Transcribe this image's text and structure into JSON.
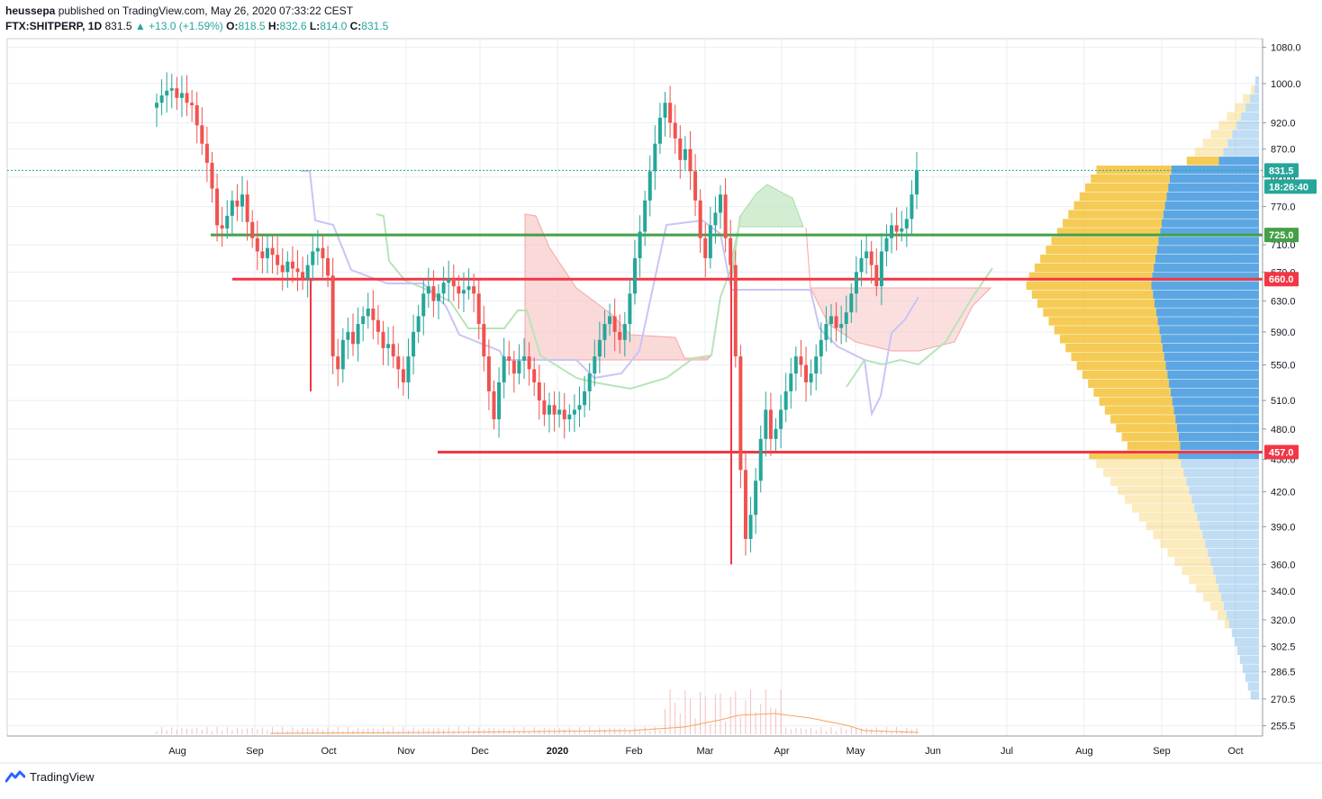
{
  "header": {
    "publisher_line": "published on TradingView.com, May 26, 2020 07:33:22 CEST",
    "author": "heussepa",
    "symbol": "FTX:SHITPERP, 1D",
    "last": "831.5",
    "change": "+13.0 (+1.59%)",
    "o_label": "O:",
    "o": "818.5",
    "h_label": "H:",
    "h": "832.6",
    "l_label": "L:",
    "l": "814.0",
    "c_label": "C:",
    "c": "831.5"
  },
  "footer": {
    "brand": "TradingView"
  },
  "colors": {
    "up": "#26a69a",
    "down": "#ef5350",
    "support_green": "#43a047",
    "level_red": "#f23645",
    "cloud_red": "#f8c9c9",
    "cloud_green": "#c8e8c8",
    "kijun": "#c9c4f5",
    "vp_yellow": "#f4c542",
    "vp_blue": "#4a9de0"
  },
  "chart_data": {
    "type": "candlestick",
    "y_scale": "log",
    "ylim": [
      250,
      1100
    ],
    "y_ticks": [
      1080.0,
      1000.0,
      920.0,
      870.0,
      820.0,
      770.0,
      710.0,
      670.0,
      630.0,
      590.0,
      550.0,
      510.0,
      480.0,
      450.0,
      420.0,
      390.0,
      360.0,
      340.0,
      320.0,
      302.5,
      286.5,
      270.5,
      255.5
    ],
    "x_ticks": [
      "Aug",
      "Sep",
      "Oct",
      "Nov",
      "Dec",
      "2020",
      "Feb",
      "Mar",
      "Apr",
      "May",
      "Jun",
      "Jul",
      "Aug",
      "Sep",
      "Oct"
    ],
    "price_labels": {
      "last": "831.5",
      "countdown": "18:26:40",
      "green_level": "725.0",
      "red_level_1": "660.0",
      "red_level_2": "457.0"
    },
    "horizontal_lines": [
      {
        "price": 725.0,
        "color": "green",
        "from": "Aug",
        "to": "right-edge"
      },
      {
        "price": 660.0,
        "color": "red",
        "from": "Aug",
        "to": "right-edge"
      },
      {
        "price": 457.0,
        "color": "red",
        "from": "Nov",
        "to": "right-edge"
      }
    ],
    "closes": [
      960,
      975,
      985,
      990,
      970,
      980,
      960,
      955,
      915,
      880,
      845,
      800,
      740,
      735,
      755,
      780,
      770,
      790,
      745,
      720,
      700,
      690,
      705,
      695,
      680,
      670,
      685,
      675,
      670,
      660,
      680,
      700,
      705,
      690,
      665,
      560,
      545,
      580,
      590,
      575,
      600,
      610,
      620,
      605,
      590,
      570,
      575,
      560,
      545,
      530,
      560,
      590,
      610,
      640,
      650,
      630,
      640,
      655,
      660,
      650,
      640,
      645,
      650,
      640,
      600,
      560,
      520,
      490,
      530,
      560,
      555,
      540,
      555,
      560,
      545,
      530,
      510,
      495,
      505,
      495,
      500,
      490,
      495,
      500,
      505,
      520,
      540,
      560,
      580,
      600,
      610,
      590,
      580,
      600,
      640,
      690,
      730,
      780,
      830,
      880,
      930,
      960,
      920,
      890,
      850,
      870,
      830,
      780,
      720,
      690,
      740,
      760,
      790,
      720,
      680,
      560,
      440,
      380,
      400,
      430,
      470,
      500,
      470,
      480,
      500,
      520,
      540,
      560,
      550,
      530,
      540,
      560,
      580,
      600,
      610,
      595,
      600,
      615,
      640,
      670,
      690,
      700,
      680,
      650,
      700,
      720,
      740,
      730,
      735,
      750,
      790,
      831.5
    ],
    "ichimoku": {
      "cloud_colors": [
        "red",
        "green"
      ],
      "kijun_color": "lavender"
    },
    "volume_profile": {
      "colors": [
        "yellow",
        "blue"
      ]
    }
  }
}
